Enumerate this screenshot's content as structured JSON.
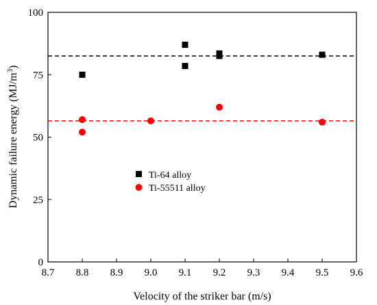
{
  "chart_data": {
    "type": "scatter",
    "xlabel": "Velocity of the striker bar (m/s)",
    "ylabel": "Dynamic failure energy (MJ/m",
    "ylabel_sup": "3",
    "ylabel_close": ")",
    "xlim": [
      8.7,
      9.6
    ],
    "ylim": [
      0,
      100
    ],
    "xticks": [
      "8.7",
      "8.8",
      "8.9",
      "9.0",
      "9.1",
      "9.2",
      "9.3",
      "9.4",
      "9.5",
      "9.6"
    ],
    "yticks": [
      "0",
      "25",
      "50",
      "75",
      "100"
    ],
    "grid": false,
    "legend_position": "center-left",
    "series": [
      {
        "name": "Ti-64 alloy",
        "marker": "square",
        "color": "#000000",
        "mean_line": 82.5,
        "points": [
          {
            "x": 8.8,
            "y": 75
          },
          {
            "x": 9.1,
            "y": 87
          },
          {
            "x": 9.1,
            "y": 78.5
          },
          {
            "x": 9.2,
            "y": 83.5
          },
          {
            "x": 9.2,
            "y": 82.5
          },
          {
            "x": 9.5,
            "y": 83
          }
        ]
      },
      {
        "name": "Ti-55511 alloy",
        "marker": "circle",
        "color": "#ff0000",
        "mean_line": 56.5,
        "points": [
          {
            "x": 8.8,
            "y": 57
          },
          {
            "x": 8.8,
            "y": 52
          },
          {
            "x": 9.0,
            "y": 56.5
          },
          {
            "x": 9.2,
            "y": 62
          },
          {
            "x": 9.5,
            "y": 56
          }
        ]
      }
    ]
  }
}
